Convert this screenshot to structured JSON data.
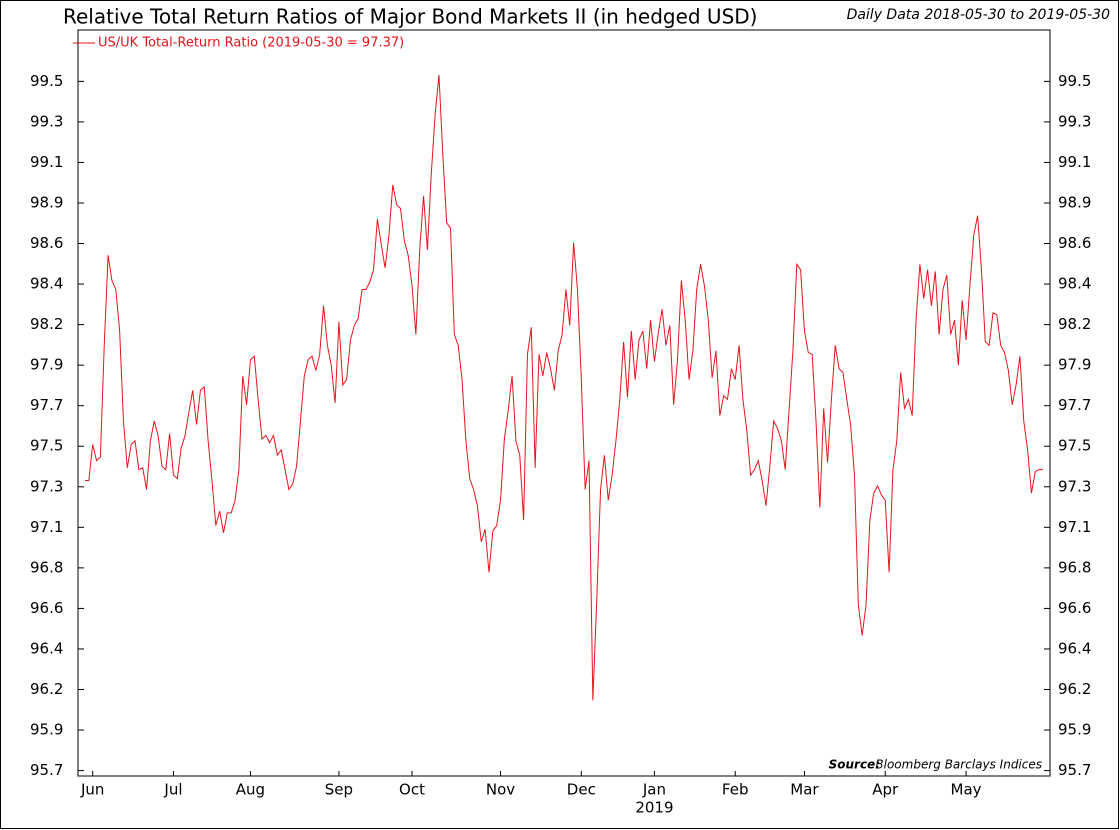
{
  "chart_data": {
    "type": "line",
    "title": "Relative Total Return Ratios of Major Bond Markets II (in hedged USD)",
    "subtitle": "Daily Data 2018-05-30 to 2019-05-30",
    "source_label": "Source:",
    "source": "Bloomberg Barclays Indices",
    "year_label": "2019",
    "legend": "top-left",
    "ylim": [
      95.67,
      99.81
    ],
    "yticks": [
      {
        "value": 95.7,
        "label": "95.7"
      },
      {
        "value": 95.925,
        "label": "95.9"
      },
      {
        "value": 96.15,
        "label": "96.2"
      },
      {
        "value": 96.375,
        "label": "96.4"
      },
      {
        "value": 96.6,
        "label": "96.6"
      },
      {
        "value": 96.825,
        "label": "96.8"
      },
      {
        "value": 97.05,
        "label": "97.1"
      },
      {
        "value": 97.275,
        "label": "97.3"
      },
      {
        "value": 97.5,
        "label": "97.5"
      },
      {
        "value": 97.725,
        "label": "97.7"
      },
      {
        "value": 97.95,
        "label": "97.9"
      },
      {
        "value": 98.175,
        "label": "98.2"
      },
      {
        "value": 98.4,
        "label": "98.4"
      },
      {
        "value": 98.625,
        "label": "98.6"
      },
      {
        "value": 98.85,
        "label": "98.9"
      },
      {
        "value": 99.075,
        "label": "99.1"
      },
      {
        "value": 99.3,
        "label": "99.3"
      },
      {
        "value": 99.525,
        "label": "99.5"
      }
    ],
    "categories": [
      null,
      null,
      "Jun",
      null,
      null,
      null,
      null,
      null,
      null,
      null,
      null,
      null,
      null,
      null,
      null,
      null,
      null,
      null,
      null,
      null,
      null,
      null,
      null,
      "Jul",
      null,
      null,
      null,
      null,
      null,
      null,
      null,
      null,
      null,
      null,
      null,
      null,
      null,
      null,
      null,
      null,
      null,
      null,
      null,
      "Aug",
      null,
      null,
      null,
      null,
      null,
      null,
      null,
      null,
      null,
      null,
      null,
      null,
      null,
      null,
      null,
      null,
      null,
      null,
      null,
      null,
      null,
      null,
      "Sep",
      null,
      null,
      null,
      null,
      null,
      null,
      null,
      null,
      null,
      null,
      null,
      null,
      null,
      null,
      null,
      null,
      null,
      null,
      "Oct",
      null,
      null,
      null,
      null,
      null,
      null,
      null,
      null,
      null,
      null,
      null,
      null,
      null,
      null,
      null,
      null,
      null,
      null,
      null,
      null,
      null,
      null,
      "Nov",
      null,
      null,
      null,
      null,
      null,
      null,
      null,
      null,
      null,
      null,
      null,
      null,
      null,
      null,
      null,
      null,
      null,
      null,
      null,
      null,
      "Dec",
      null,
      null,
      null,
      null,
      null,
      null,
      null,
      null,
      null,
      null,
      null,
      null,
      null,
      null,
      null,
      null,
      null,
      null,
      "Jan",
      null,
      null,
      null,
      null,
      null,
      null,
      null,
      null,
      null,
      null,
      null,
      null,
      null,
      null,
      null,
      null,
      null,
      null,
      null,
      null,
      "Feb",
      null,
      null,
      null,
      null,
      null,
      null,
      null,
      null,
      null,
      null,
      null,
      null,
      null,
      null,
      null,
      null,
      null,
      "Mar",
      null,
      null,
      null,
      null,
      null,
      null,
      null,
      null,
      null,
      null,
      null,
      null,
      null,
      null,
      null,
      null,
      null,
      null,
      null,
      null,
      "Apr",
      null,
      null,
      null,
      null,
      null,
      null,
      null,
      null,
      null,
      null,
      null,
      null,
      null,
      null,
      null,
      null,
      null,
      null,
      null,
      null,
      "May",
      null,
      null,
      null,
      null,
      null,
      null,
      null,
      null,
      null,
      null,
      null,
      null,
      null,
      null,
      null,
      null,
      null,
      null,
      null,
      null
    ],
    "series": [
      {
        "name": "US/UK Total-Return Ratio (2019-05-30 = 97.37)",
        "color": "#e8141c",
        "values": [
          97.31,
          97.31,
          97.51,
          97.42,
          97.44,
          98.06,
          98.56,
          98.42,
          98.37,
          98.14,
          97.64,
          97.38,
          97.51,
          97.53,
          97.37,
          97.38,
          97.26,
          97.53,
          97.64,
          97.56,
          97.39,
          97.37,
          97.57,
          97.34,
          97.32,
          97.49,
          97.56,
          97.69,
          97.81,
          97.62,
          97.81,
          97.83,
          97.53,
          97.31,
          97.06,
          97.14,
          97.02,
          97.13,
          97.13,
          97.2,
          97.37,
          97.89,
          97.73,
          97.98,
          98.0,
          97.76,
          97.54,
          97.56,
          97.52,
          97.56,
          97.45,
          97.48,
          97.37,
          97.26,
          97.29,
          97.39,
          97.64,
          97.89,
          97.98,
          98.0,
          97.92,
          98.01,
          98.28,
          98.06,
          97.95,
          97.74,
          98.19,
          97.84,
          97.87,
          98.09,
          98.17,
          98.21,
          98.37,
          98.37,
          98.41,
          98.48,
          98.76,
          98.62,
          98.49,
          98.67,
          98.95,
          98.84,
          98.82,
          98.64,
          98.56,
          98.39,
          98.12,
          98.59,
          98.89,
          98.59,
          99.01,
          99.34,
          99.56,
          99.12,
          98.74,
          98.71,
          98.12,
          98.06,
          97.87,
          97.53,
          97.32,
          97.26,
          97.17,
          96.97,
          97.04,
          96.8,
          97.03,
          97.06,
          97.2,
          97.54,
          97.7,
          97.89,
          97.53,
          97.45,
          97.09,
          98.01,
          98.16,
          97.38,
          98.01,
          97.89,
          98.02,
          97.93,
          97.81,
          98.03,
          98.12,
          98.37,
          98.17,
          98.63,
          98.37,
          97.87,
          97.26,
          97.42,
          96.09,
          96.64,
          97.26,
          97.45,
          97.2,
          97.34,
          97.53,
          97.76,
          98.08,
          97.77,
          98.14,
          97.87,
          98.09,
          98.14,
          97.93,
          98.2,
          97.97,
          98.13,
          98.26,
          98.06,
          98.17,
          97.73,
          97.98,
          98.42,
          98.2,
          97.87,
          98.03,
          98.37,
          98.51,
          98.39,
          98.2,
          97.88,
          98.03,
          97.67,
          97.78,
          97.76,
          97.93,
          97.87,
          98.06,
          97.76,
          97.59,
          97.34,
          97.37,
          97.42,
          97.31,
          97.17,
          97.39,
          97.64,
          97.6,
          97.53,
          97.37,
          97.7,
          98.03,
          98.51,
          98.48,
          98.14,
          98.02,
          98.01,
          97.64,
          97.16,
          97.71,
          97.41,
          97.76,
          98.06,
          97.93,
          97.91,
          97.76,
          97.62,
          97.34,
          96.62,
          96.45,
          96.62,
          97.09,
          97.24,
          97.28,
          97.23,
          97.2,
          96.8,
          97.37,
          97.53,
          97.91,
          97.71,
          97.76,
          97.67,
          98.2,
          98.51,
          98.32,
          98.48,
          98.28,
          98.47,
          98.12,
          98.37,
          98.45,
          98.12,
          98.2,
          97.95,
          98.31,
          98.09,
          98.39,
          98.67,
          98.78,
          98.48,
          98.08,
          98.06,
          98.24,
          98.23,
          98.06,
          98.02,
          97.92,
          97.73,
          97.84,
          98.0,
          97.64,
          97.48,
          97.24,
          97.36,
          97.37,
          97.37
        ]
      }
    ]
  }
}
